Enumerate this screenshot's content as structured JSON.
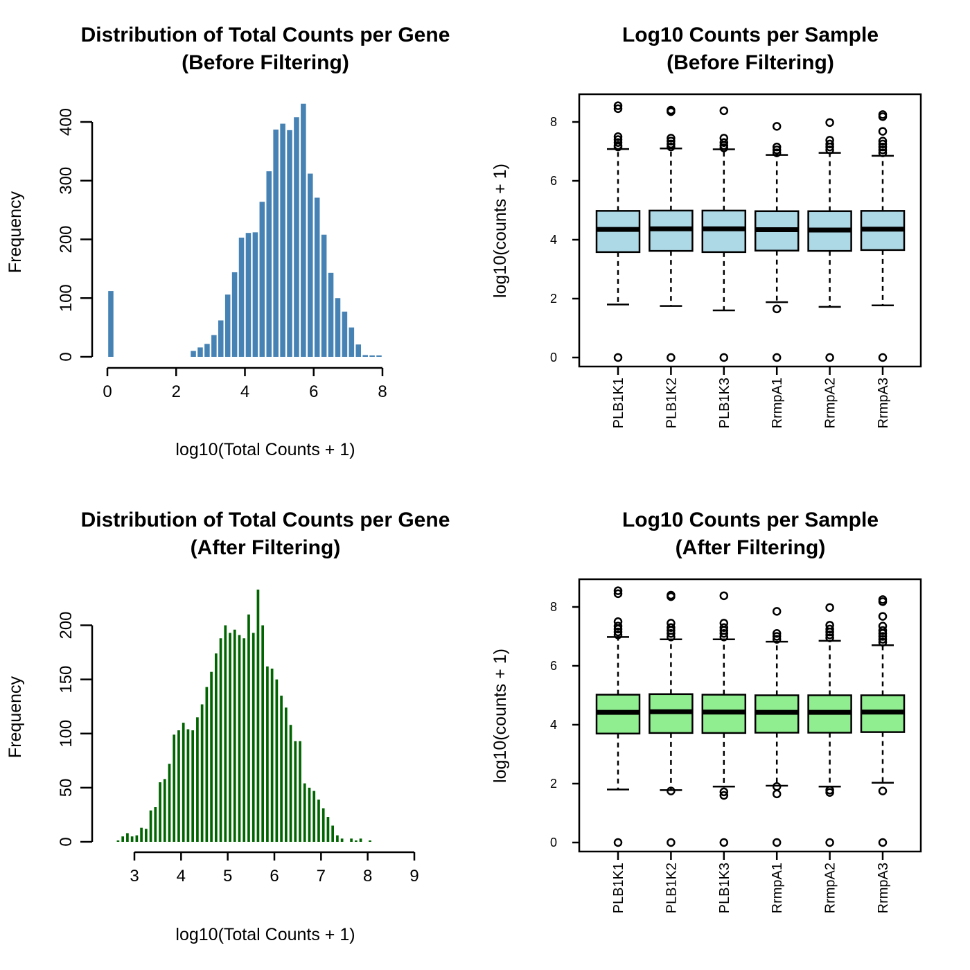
{
  "colors": {
    "hist_before": "#4682b4",
    "hist_after": "#006400",
    "box_before": "#add8e6",
    "box_after": "#90ee90"
  },
  "panels": {
    "hist_before": {
      "title_line1": "Distribution of Total Counts per Gene",
      "title_line2": "(Before Filtering)",
      "xlabel": "log10(Total Counts + 1)",
      "ylabel": "Frequency"
    },
    "box_before": {
      "title_line1": "Log10 Counts per Sample",
      "title_line2": "(Before Filtering)",
      "ylabel": "log10(counts + 1)"
    },
    "hist_after": {
      "title_line1": "Distribution of Total Counts per Gene",
      "title_line2": "(After Filtering)",
      "xlabel": "log10(Total Counts + 1)",
      "ylabel": "Frequency"
    },
    "box_after": {
      "title_line1": "Log10 Counts per Sample",
      "title_line2": "(After Filtering)",
      "ylabel": "log10(counts + 1)"
    }
  },
  "chart_data": [
    {
      "type": "bar",
      "title": "Distribution of Total Counts per Gene (Before Filtering)",
      "xlabel": "log10(Total Counts + 1)",
      "ylabel": "Frequency",
      "xlim": [
        0,
        8
      ],
      "ylim": [
        0,
        430
      ],
      "xticks": [
        0,
        2,
        4,
        6,
        8
      ],
      "yticks": [
        0,
        100,
        200,
        300,
        400
      ],
      "bin_width": 0.2,
      "bins": [
        {
          "x": 0.0,
          "count": 112
        },
        {
          "x": 2.4,
          "count": 10
        },
        {
          "x": 2.6,
          "count": 16
        },
        {
          "x": 2.8,
          "count": 22
        },
        {
          "x": 3.0,
          "count": 37
        },
        {
          "x": 3.2,
          "count": 62
        },
        {
          "x": 3.4,
          "count": 106
        },
        {
          "x": 3.6,
          "count": 144
        },
        {
          "x": 3.8,
          "count": 203
        },
        {
          "x": 4.0,
          "count": 211
        },
        {
          "x": 4.2,
          "count": 212
        },
        {
          "x": 4.4,
          "count": 264
        },
        {
          "x": 4.6,
          "count": 316
        },
        {
          "x": 4.8,
          "count": 387
        },
        {
          "x": 5.0,
          "count": 397
        },
        {
          "x": 5.2,
          "count": 386
        },
        {
          "x": 5.4,
          "count": 408
        },
        {
          "x": 5.6,
          "count": 431
        },
        {
          "x": 5.8,
          "count": 312
        },
        {
          "x": 6.0,
          "count": 271
        },
        {
          "x": 6.2,
          "count": 208
        },
        {
          "x": 6.4,
          "count": 143
        },
        {
          "x": 6.6,
          "count": 100
        },
        {
          "x": 6.8,
          "count": 77
        },
        {
          "x": 7.0,
          "count": 50
        },
        {
          "x": 7.2,
          "count": 21
        },
        {
          "x": 7.4,
          "count": 3
        },
        {
          "x": 7.6,
          "count": 2
        },
        {
          "x": 7.8,
          "count": 2
        }
      ]
    },
    {
      "type": "box",
      "title": "Log10 Counts per Sample (Before Filtering)",
      "ylabel": "log10(counts + 1)",
      "ylim": [
        0,
        8.5
      ],
      "yticks": [
        0,
        2,
        4,
        6,
        8
      ],
      "categories": [
        "PLB1K1",
        "PLB1K2",
        "PLB1K3",
        "RrmpA1",
        "RrmpA2",
        "RrmpA3"
      ],
      "boxes": [
        {
          "name": "PLB1K1",
          "whisker_low": 1.8,
          "q1": 3.58,
          "median": 4.35,
          "q3": 4.98,
          "whisker_high": 7.08,
          "outliers": [
            0,
            7.15,
            7.2,
            7.3,
            7.4,
            7.5,
            8.45,
            8.55
          ]
        },
        {
          "name": "PLB1K2",
          "whisker_low": 1.75,
          "q1": 3.62,
          "median": 4.37,
          "q3": 4.99,
          "whisker_high": 7.1,
          "outliers": [
            0,
            7.15,
            7.25,
            7.35,
            7.45,
            8.35,
            8.4
          ]
        },
        {
          "name": "PLB1K3",
          "whisker_low": 1.6,
          "q1": 3.58,
          "median": 4.37,
          "q3": 4.99,
          "whisker_high": 7.07,
          "outliers": [
            0,
            7.12,
            7.2,
            7.3,
            7.45,
            8.38
          ]
        },
        {
          "name": "RrmpA1",
          "whisker_low": 1.88,
          "q1": 3.63,
          "median": 4.34,
          "q3": 4.97,
          "whisker_high": 6.88,
          "outliers": [
            0,
            1.65,
            6.95,
            7.05,
            7.15,
            7.85
          ]
        },
        {
          "name": "RrmpA2",
          "whisker_low": 1.72,
          "q1": 3.62,
          "median": 4.33,
          "q3": 4.97,
          "whisker_high": 6.95,
          "outliers": [
            0,
            7.05,
            7.15,
            7.25,
            7.38,
            7.98
          ]
        },
        {
          "name": "RrmpA3",
          "whisker_low": 1.77,
          "q1": 3.65,
          "median": 4.36,
          "q3": 4.98,
          "whisker_high": 6.85,
          "outliers": [
            0,
            6.95,
            7.05,
            7.15,
            7.25,
            7.35,
            7.68,
            8.18,
            8.25
          ]
        }
      ]
    },
    {
      "type": "bar",
      "title": "Distribution of Total Counts per Gene (After Filtering)",
      "xlabel": "log10(Total Counts + 1)",
      "ylabel": "Frequency",
      "xlim": [
        3,
        9
      ],
      "ylim": [
        0,
        234
      ],
      "xticks": [
        3,
        4,
        5,
        6,
        7,
        8,
        9
      ],
      "yticks": [
        0,
        50,
        100,
        150,
        200
      ],
      "bin_width": 0.1,
      "bins": [
        {
          "x": 2.6,
          "count": 1
        },
        {
          "x": 2.7,
          "count": 5
        },
        {
          "x": 2.8,
          "count": 8
        },
        {
          "x": 2.9,
          "count": 5
        },
        {
          "x": 3.0,
          "count": 6
        },
        {
          "x": 3.1,
          "count": 13
        },
        {
          "x": 3.2,
          "count": 12
        },
        {
          "x": 3.3,
          "count": 29
        },
        {
          "x": 3.4,
          "count": 32
        },
        {
          "x": 3.5,
          "count": 55
        },
        {
          "x": 3.6,
          "count": 58
        },
        {
          "x": 3.7,
          "count": 72
        },
        {
          "x": 3.8,
          "count": 99
        },
        {
          "x": 3.9,
          "count": 103
        },
        {
          "x": 4.0,
          "count": 110
        },
        {
          "x": 4.1,
          "count": 104
        },
        {
          "x": 4.2,
          "count": 103
        },
        {
          "x": 4.3,
          "count": 115
        },
        {
          "x": 4.4,
          "count": 127
        },
        {
          "x": 4.5,
          "count": 143
        },
        {
          "x": 4.6,
          "count": 157
        },
        {
          "x": 4.7,
          "count": 174
        },
        {
          "x": 4.8,
          "count": 188
        },
        {
          "x": 4.9,
          "count": 200
        },
        {
          "x": 5.0,
          "count": 193
        },
        {
          "x": 5.1,
          "count": 196
        },
        {
          "x": 5.2,
          "count": 191
        },
        {
          "x": 5.3,
          "count": 188
        },
        {
          "x": 5.4,
          "count": 210
        },
        {
          "x": 5.5,
          "count": 193
        },
        {
          "x": 5.6,
          "count": 233
        },
        {
          "x": 5.7,
          "count": 200
        },
        {
          "x": 5.8,
          "count": 162
        },
        {
          "x": 5.9,
          "count": 160
        },
        {
          "x": 6.0,
          "count": 150
        },
        {
          "x": 6.1,
          "count": 135
        },
        {
          "x": 6.2,
          "count": 124
        },
        {
          "x": 6.3,
          "count": 108
        },
        {
          "x": 6.4,
          "count": 93
        },
        {
          "x": 6.5,
          "count": 93
        },
        {
          "x": 6.6,
          "count": 54
        },
        {
          "x": 6.7,
          "count": 50
        },
        {
          "x": 6.8,
          "count": 47
        },
        {
          "x": 6.9,
          "count": 39
        },
        {
          "x": 7.0,
          "count": 31
        },
        {
          "x": 7.1,
          "count": 23
        },
        {
          "x": 7.2,
          "count": 15
        },
        {
          "x": 7.3,
          "count": 6
        },
        {
          "x": 7.4,
          "count": 3
        },
        {
          "x": 7.5,
          "count": 0
        },
        {
          "x": 7.6,
          "count": 3
        },
        {
          "x": 7.7,
          "count": 1
        },
        {
          "x": 7.8,
          "count": 3
        },
        {
          "x": 7.9,
          "count": 0
        },
        {
          "x": 8.0,
          "count": 1
        }
      ]
    },
    {
      "type": "box",
      "title": "Log10 Counts per Sample (After Filtering)",
      "ylabel": "log10(counts + 1)",
      "ylim": [
        0,
        8.5
      ],
      "yticks": [
        0,
        2,
        4,
        6,
        8
      ],
      "categories": [
        "PLB1K1",
        "PLB1K2",
        "PLB1K3",
        "RrmpA1",
        "RrmpA2",
        "RrmpA3"
      ],
      "boxes": [
        {
          "name": "PLB1K1",
          "whisker_low": 1.8,
          "q1": 3.7,
          "median": 4.42,
          "q3": 5.02,
          "whisker_high": 6.98,
          "outliers": [
            0,
            7.05,
            7.15,
            7.25,
            7.35,
            7.5,
            8.45,
            8.55
          ]
        },
        {
          "name": "PLB1K2",
          "whisker_low": 1.78,
          "q1": 3.72,
          "median": 4.44,
          "q3": 5.04,
          "whisker_high": 6.9,
          "outliers": [
            0,
            1.75,
            6.98,
            7.1,
            7.2,
            7.3,
            7.45,
            8.35,
            8.4
          ]
        },
        {
          "name": "PLB1K3",
          "whisker_low": 1.9,
          "q1": 3.72,
          "median": 4.43,
          "q3": 5.02,
          "whisker_high": 6.9,
          "outliers": [
            0,
            1.6,
            1.72,
            6.98,
            7.1,
            7.2,
            7.3,
            7.45,
            8.38
          ]
        },
        {
          "name": "RrmpA1",
          "whisker_low": 1.93,
          "q1": 3.73,
          "median": 4.42,
          "q3": 5.0,
          "whisker_high": 6.82,
          "outliers": [
            0,
            1.65,
            1.9,
            6.9,
            7.0,
            7.1,
            7.85
          ]
        },
        {
          "name": "RrmpA2",
          "whisker_low": 1.9,
          "q1": 3.73,
          "median": 4.42,
          "q3": 5.0,
          "whisker_high": 6.85,
          "outliers": [
            0,
            1.7,
            1.78,
            6.95,
            7.05,
            7.15,
            7.25,
            7.38,
            7.98
          ]
        },
        {
          "name": "RrmpA3",
          "whisker_low": 2.03,
          "q1": 3.75,
          "median": 4.43,
          "q3": 5.0,
          "whisker_high": 6.7,
          "outliers": [
            0,
            1.75,
            6.8,
            6.9,
            7.0,
            7.1,
            7.2,
            7.35,
            7.68,
            8.18,
            8.25
          ]
        }
      ]
    }
  ]
}
